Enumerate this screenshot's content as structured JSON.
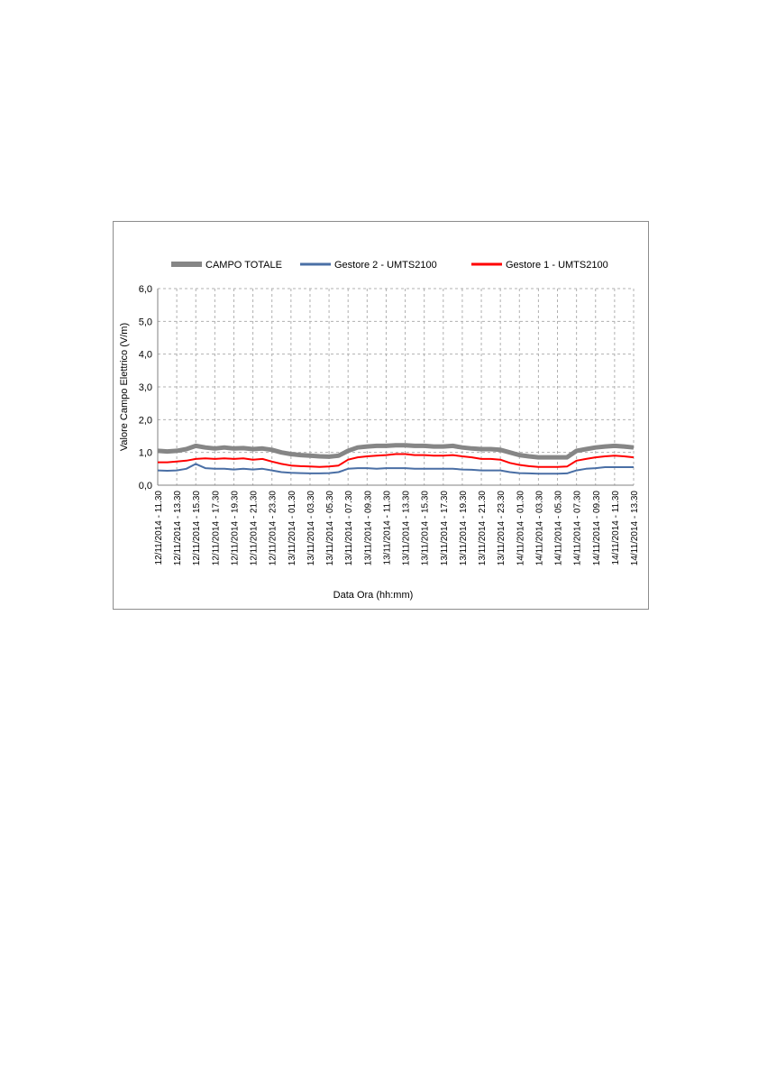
{
  "chart_data": {
    "type": "line",
    "x_label": "Data Ora (hh:mm)",
    "y_label": "Valore Campo Elettrico (V/m)",
    "categories": [
      "12/11/2014 - 11.30",
      null,
      "12/11/2014 - 13.30",
      null,
      "12/11/2014 - 15.30",
      null,
      "12/11/2014 - 17.30",
      null,
      "12/11/2014 - 19.30",
      null,
      "12/11/2014 - 21.30",
      null,
      "12/11/2014 - 23.30",
      null,
      "13/11/2014 - 01.30",
      null,
      "13/11/2014 - 03.30",
      null,
      "13/11/2014 - 05.30",
      null,
      "13/11/2014 - 07.30",
      null,
      "13/11/2014 - 09.30",
      null,
      "13/11/2014 - 11.30",
      null,
      "13/11/2014 - 13.30",
      null,
      "13/11/2014 - 15.30",
      null,
      "13/11/2014 - 17.30",
      null,
      "13/11/2014 - 19.30",
      null,
      "13/11/2014 - 21.30",
      null,
      "13/11/2014 - 23.30",
      null,
      "14/11/2014 - 01.30",
      null,
      "14/11/2014 - 03.30",
      null,
      "14/11/2014 - 05.30",
      null,
      "14/11/2014 - 07.30",
      null,
      "14/11/2014 - 09.30",
      null,
      "14/11/2014 - 11.30",
      null,
      "14/11/2014 - 13.30"
    ],
    "series": [
      {
        "name": "CAMPO TOTALE",
        "color": "#868686",
        "width": 5,
        "values": [
          1.05,
          1.03,
          1.05,
          1.1,
          1.2,
          1.15,
          1.12,
          1.15,
          1.12,
          1.13,
          1.1,
          1.12,
          1.08,
          1.0,
          0.95,
          0.92,
          0.9,
          0.88,
          0.87,
          0.9,
          1.05,
          1.15,
          1.18,
          1.2,
          1.2,
          1.22,
          1.22,
          1.2,
          1.2,
          1.18,
          1.18,
          1.2,
          1.15,
          1.12,
          1.1,
          1.1,
          1.08,
          1.0,
          0.92,
          0.88,
          0.85,
          0.85,
          0.85,
          0.85,
          1.05,
          1.1,
          1.15,
          1.18,
          1.2,
          1.18,
          1.15
        ]
      },
      {
        "name": "Gestore 2 - UMTS2100",
        "color": "#4a6fa5",
        "width": 2,
        "values": [
          0.45,
          0.44,
          0.45,
          0.5,
          0.65,
          0.52,
          0.5,
          0.5,
          0.48,
          0.5,
          0.48,
          0.5,
          0.45,
          0.4,
          0.38,
          0.37,
          0.36,
          0.36,
          0.37,
          0.4,
          0.5,
          0.52,
          0.52,
          0.5,
          0.52,
          0.52,
          0.52,
          0.5,
          0.5,
          0.5,
          0.5,
          0.5,
          0.48,
          0.47,
          0.45,
          0.45,
          0.45,
          0.4,
          0.37,
          0.36,
          0.35,
          0.35,
          0.35,
          0.36,
          0.45,
          0.5,
          0.52,
          0.55,
          0.55,
          0.55,
          0.55
        ]
      },
      {
        "name": "Gestore 1 - UMTS2100",
        "color": "#ff0000",
        "width": 2,
        "values": [
          0.7,
          0.7,
          0.72,
          0.75,
          0.8,
          0.82,
          0.8,
          0.82,
          0.8,
          0.82,
          0.78,
          0.8,
          0.72,
          0.65,
          0.6,
          0.58,
          0.57,
          0.56,
          0.57,
          0.6,
          0.78,
          0.85,
          0.88,
          0.9,
          0.92,
          0.95,
          0.95,
          0.92,
          0.92,
          0.9,
          0.9,
          0.92,
          0.88,
          0.85,
          0.8,
          0.8,
          0.78,
          0.68,
          0.62,
          0.58,
          0.56,
          0.56,
          0.56,
          0.57,
          0.75,
          0.8,
          0.85,
          0.88,
          0.9,
          0.88,
          0.85
        ]
      }
    ],
    "ylim": [
      0,
      6
    ],
    "yticks": [
      {
        "value": 0,
        "label": "0,0"
      },
      {
        "value": 1,
        "label": "1,0"
      },
      {
        "value": 2,
        "label": "2,0"
      },
      {
        "value": 3,
        "label": "3,0"
      },
      {
        "value": 4,
        "label": "4,0"
      },
      {
        "value": 5,
        "label": "5,0"
      },
      {
        "value": 6,
        "label": "6,0"
      }
    ],
    "grid": true,
    "legend": "top"
  }
}
